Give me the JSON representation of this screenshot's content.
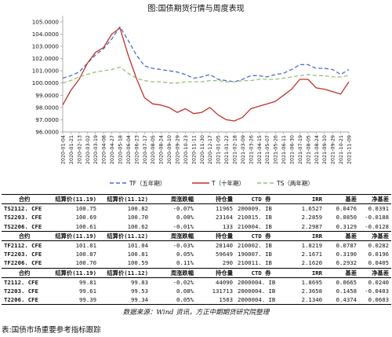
{
  "chart_title": "图:国债期货行情与周度表现",
  "chart_data": {
    "type": "line",
    "ylim": [
      96,
      105.5
    ],
    "y_ticks": [
      "96.0000",
      "97.0000",
      "98.0000",
      "99.0000",
      "100.0000",
      "101.0000",
      "102.0000",
      "103.0000",
      "104.0000",
      "105.0000"
    ],
    "x_ticks": [
      "2020-01-04",
      "2020-01-21",
      "2020-02-13",
      "2020-03-02",
      "2020-03-19",
      "2020-04-08",
      "2020-04-27",
      "2020-05-18",
      "2020-06-04",
      "2020-06-23",
      "2020-07-17",
      "2020-08-05",
      "2020-08-24",
      "2020-09-10",
      "2020-09-29",
      "2020-10-23",
      "2020-11-11",
      "2020-11-30",
      "2020-12-17",
      "2021-01-05",
      "2021-01-22",
      "2021-02-18",
      "2021-03-09",
      "2021-03-26",
      "2021-04-15",
      "2021-05-07",
      "2021-05-26",
      "2021-06-11",
      "2021-06-30",
      "2021-07-19",
      "2021-08-05",
      "2021-08-24",
      "2021-09-10",
      "2021-09-29",
      "2021-10-21",
      "2021-11-09"
    ],
    "series": [
      {
        "name": "TF（五年期）",
        "color": "#4a6fc3",
        "dash": "5,3",
        "values": [
          100.4,
          100.6,
          100.9,
          101.6,
          102.3,
          102.8,
          103.6,
          104.6,
          103.5,
          102.3,
          101.4,
          101.2,
          101.1,
          101.0,
          100.9,
          100.7,
          100.4,
          100.5,
          100.7,
          100.3,
          100.2,
          100.1,
          100.3,
          100.6,
          100.6,
          100.5,
          100.7,
          100.8,
          101.1,
          101.5,
          101.5,
          101.2,
          101.2,
          101.1,
          100.7,
          101.1
        ]
      },
      {
        "name": "T（十年期）",
        "color": "#c0312b",
        "dash": "",
        "values": [
          98.2,
          99.4,
          100.3,
          101.6,
          102.5,
          102.9,
          104.0,
          104.5,
          102.3,
          100.4,
          98.8,
          98.3,
          98.2,
          98.0,
          97.6,
          97.9,
          97.5,
          97.6,
          98.0,
          97.4,
          97.0,
          96.9,
          97.2,
          97.9,
          98.1,
          98.3,
          98.5,
          99.0,
          99.5,
          100.3,
          100.3,
          99.6,
          99.5,
          99.3,
          99.1,
          100.1
        ]
      },
      {
        "name": "TS（两年期）",
        "color": "#9bbf74",
        "dash": "5,3",
        "values": [
          100.0,
          100.2,
          100.5,
          100.7,
          100.9,
          101.0,
          101.1,
          101.3,
          100.8,
          100.4,
          100.2,
          100.1,
          100.1,
          100.0,
          100.0,
          100.1,
          100.1,
          100.1,
          100.2,
          100.2,
          100.1,
          100.1,
          100.2,
          100.2,
          100.3,
          100.3,
          100.3,
          100.4,
          100.5,
          100.6,
          100.7,
          100.6,
          100.6,
          100.5,
          100.5,
          100.6
        ]
      }
    ]
  },
  "table": {
    "groups": [
      {
        "header": [
          "合约",
          "结算价(11.19)",
          "结算价(11.12)",
          "周涨跌幅",
          "持仓量",
          "CTD 券",
          "IRR",
          "基差",
          "净基差"
        ],
        "rows": [
          [
            "TS2112. CFE",
            "100.75",
            "100.82",
            "-0.07%",
            "11965",
            "200009. IB",
            "1.6527",
            "0.0476",
            "0.0391"
          ],
          [
            "TS2203. CFE",
            "100.69",
            "100.70",
            "0.00%",
            "23164",
            "210015. IB",
            "2.2859",
            "0.0850",
            "-0.0188"
          ],
          [
            "TS2206. CFE",
            "100.61",
            "100.62",
            "-0.01%",
            "133",
            "210004. IB",
            "2.2987",
            "0.3129",
            "-0.0128"
          ]
        ]
      },
      {
        "header": [
          "合约",
          "结算价(11.19)",
          "结算价(11.12)",
          "周涨跌幅",
          "持仓量",
          "CTD 券",
          "IRR",
          "基差",
          "净基差"
        ],
        "rows": [
          [
            "TF2112. CFE",
            "101.01",
            "101.04",
            "-0.03%",
            "28140",
            "210002. IB",
            "1.8219",
            "0.0787",
            "0.0282"
          ],
          [
            "TF2203. CFE",
            "100.87",
            "100.81",
            "0.05%",
            "59649",
            "190007. IB",
            "2.1671",
            "0.3190",
            "0.0196"
          ],
          [
            "TF2206. CFE",
            "100.70",
            "100.59",
            "0.11%",
            "290",
            "210011. IB",
            "2.1620",
            "0.2932",
            "0.0405"
          ]
        ]
      },
      {
        "header": [
          "合约",
          "结算价(11.19)",
          "结算价(11.12)",
          "周涨跌幅",
          "持仓量",
          "CTD 券",
          "IRR",
          "基差",
          "净基差"
        ],
        "rows": [
          [
            "T2112. CFE",
            "99.81",
            "99.83",
            "-0.02%",
            "44090",
            "2000004. IB",
            "1.8695",
            "0.0665",
            "0.0240"
          ],
          [
            "T2203. CFE",
            "99.61",
            "99.53",
            "0.08%",
            "131713",
            "2000004. IB",
            "2.3658",
            "0.1458",
            "-0.0403"
          ],
          [
            "T2206. CFE",
            "99.39",
            "99.34",
            "0.05%",
            "1503",
            "2000004. IB",
            "2.1340",
            "0.4374",
            "0.0603"
          ]
        ]
      }
    ]
  },
  "source": "数据来源：Wind 资讯，方正中期期货研究院整理",
  "footer": "表:国债市场重要参考指标跟踪"
}
